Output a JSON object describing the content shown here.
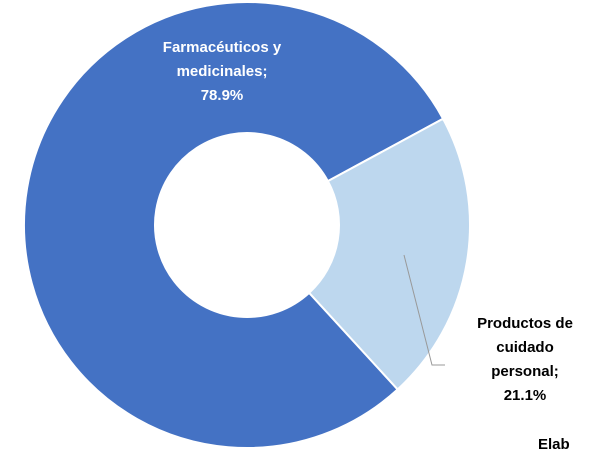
{
  "chart_data": {
    "type": "donut",
    "categories": [
      "Farmacéuticos y medicinales",
      "Productos de cuidado personal"
    ],
    "values": [
      78.9,
      21.1
    ],
    "value_labels": [
      "Farmacéuticos y medicinales; 78.9%",
      "Productos de cuidado personal; 21.1%"
    ],
    "colors": [
      "#4472c4",
      "#bdd7ee"
    ],
    "label_colors": [
      "#ffffff",
      "#000000"
    ],
    "note": "Elab"
  }
}
